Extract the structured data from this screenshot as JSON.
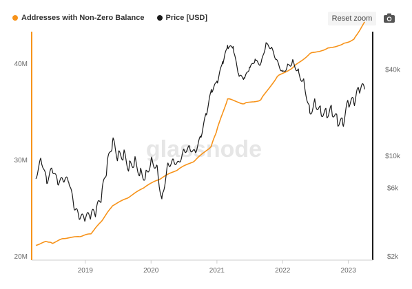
{
  "legend": {
    "addresses_label": "Addresses with Non-Zero Balance",
    "price_label": "Price [USD]"
  },
  "toolbar": {
    "reset_label": "Reset zoom",
    "camera_icon": "camera-icon"
  },
  "watermark": "glassnode",
  "colors": {
    "addresses": "#f7931a",
    "price": "#1a1a1a",
    "grid": "#efefef"
  },
  "chart_data": {
    "type": "line",
    "title": "",
    "xlabel": "",
    "x_ticks": [
      "2019",
      "2020",
      "2021",
      "2022",
      "2023"
    ],
    "y_left": {
      "label": "",
      "ticks": [
        "20M",
        "30M",
        "40M"
      ],
      "range": [
        20,
        43
      ],
      "unit": "M"
    },
    "y_right": {
      "label": "",
      "scale": "log",
      "ticks": [
        "$2k",
        "$6k",
        "$10k",
        "$40k"
      ],
      "tick_values": [
        2000,
        6000,
        10000,
        40000
      ],
      "range": [
        2000,
        70000
      ]
    },
    "grid": false,
    "legend_position": "top-left",
    "series": [
      {
        "name": "Addresses with Non-Zero Balance",
        "axis": "left",
        "points": [
          [
            "2018-04",
            21.1
          ],
          [
            "2018-06",
            21.5
          ],
          [
            "2018-07",
            21.3
          ],
          [
            "2018-09",
            21.8
          ],
          [
            "2018-12",
            22.0
          ],
          [
            "2019-02",
            22.3
          ],
          [
            "2019-04",
            23.6
          ],
          [
            "2019-06",
            25.2
          ],
          [
            "2019-09",
            26.1
          ],
          [
            "2019-12",
            27.2
          ],
          [
            "2020-03",
            28.1
          ],
          [
            "2020-06",
            29.0
          ],
          [
            "2020-09",
            29.9
          ],
          [
            "2020-12",
            31.4
          ],
          [
            "2021-01",
            33.1
          ],
          [
            "2021-03",
            36.3
          ],
          [
            "2021-06",
            35.8
          ],
          [
            "2021-09",
            36.2
          ],
          [
            "2021-12",
            38.6
          ],
          [
            "2022-03",
            39.6
          ],
          [
            "2022-06",
            41.0
          ],
          [
            "2022-09",
            41.5
          ],
          [
            "2022-12",
            42.0
          ],
          [
            "2023-02",
            42.5
          ],
          [
            "2023-04",
            44.3
          ]
        ]
      },
      {
        "name": "Price [USD]",
        "axis": "right",
        "points": [
          [
            "2018-04",
            6900
          ],
          [
            "2018-05",
            9200
          ],
          [
            "2018-06",
            6400
          ],
          [
            "2018-07",
            7900
          ],
          [
            "2018-08",
            6300
          ],
          [
            "2018-09",
            6600
          ],
          [
            "2018-10",
            6500
          ],
          [
            "2018-11",
            4200
          ],
          [
            "2018-12",
            3600
          ],
          [
            "2019-01",
            3600
          ],
          [
            "2019-02",
            3800
          ],
          [
            "2019-03",
            4000
          ],
          [
            "2019-04",
            5200
          ],
          [
            "2019-05",
            8300
          ],
          [
            "2019-06",
            12500
          ],
          [
            "2019-07",
            9800
          ],
          [
            "2019-08",
            10200
          ],
          [
            "2019-09",
            8300
          ],
          [
            "2019-10",
            9200
          ],
          [
            "2019-11",
            7600
          ],
          [
            "2019-12",
            7200
          ],
          [
            "2020-01",
            9300
          ],
          [
            "2020-02",
            8600
          ],
          [
            "2020-03",
            5000
          ],
          [
            "2020-04",
            8700
          ],
          [
            "2020-05",
            9500
          ],
          [
            "2020-06",
            9100
          ],
          [
            "2020-07",
            11100
          ],
          [
            "2020-08",
            11700
          ],
          [
            "2020-09",
            10800
          ],
          [
            "2020-10",
            13700
          ],
          [
            "2020-11",
            19700
          ],
          [
            "2020-12",
            29000
          ],
          [
            "2021-01",
            33100
          ],
          [
            "2021-02",
            45200
          ],
          [
            "2021-03",
            58800
          ],
          [
            "2021-04",
            57700
          ],
          [
            "2021-05",
            37300
          ],
          [
            "2021-06",
            35000
          ],
          [
            "2021-07",
            41500
          ],
          [
            "2021-08",
            47100
          ],
          [
            "2021-09",
            43800
          ],
          [
            "2021-10",
            61300
          ],
          [
            "2021-11",
            57000
          ],
          [
            "2021-12",
            46300
          ],
          [
            "2022-01",
            38500
          ],
          [
            "2022-02",
            43200
          ],
          [
            "2022-03",
            45500
          ],
          [
            "2022-04",
            37700
          ],
          [
            "2022-05",
            31800
          ],
          [
            "2022-06",
            19900
          ],
          [
            "2022-07",
            23300
          ],
          [
            "2022-08",
            20000
          ],
          [
            "2022-09",
            19400
          ],
          [
            "2022-10",
            20500
          ],
          [
            "2022-11",
            17200
          ],
          [
            "2022-12",
            16500
          ],
          [
            "2023-01",
            23100
          ],
          [
            "2023-02",
            23100
          ],
          [
            "2023-03",
            28500
          ],
          [
            "2023-04",
            29000
          ]
        ]
      }
    ]
  }
}
